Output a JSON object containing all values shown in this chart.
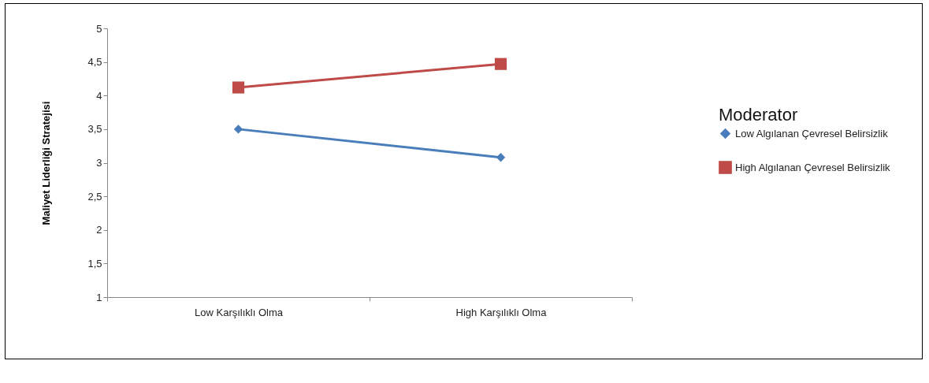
{
  "chart_data": {
    "type": "line",
    "ylabel": "Maliyet Liderliği Stratejisi",
    "legend_title": "Moderator",
    "categories": [
      "Low Karşılıklı Olma",
      "High Karşılıklı Olma"
    ],
    "series": [
      {
        "name": "Low Algılanan Çevresel Belirsizlik",
        "color": "#4a7ebb",
        "marker": "diamond",
        "values": [
          3.5,
          3.08
        ]
      },
      {
        "name": "High Algılanan Çevresel Belirsizlik",
        "color": "#be4b48",
        "marker": "square",
        "values": [
          4.12,
          4.47
        ]
      }
    ],
    "ylim": [
      1,
      5
    ],
    "yticks": [
      1,
      {
        "value": 1.5,
        "label": "1,5"
      },
      2,
      {
        "value": 2.5,
        "label": "2,5"
      },
      3,
      {
        "value": 3.5,
        "label": "3,5"
      },
      4,
      {
        "value": 4.5,
        "label": "4,5"
      },
      5
    ],
    "grid": false,
    "legend": "right",
    "line_style": "solid"
  }
}
